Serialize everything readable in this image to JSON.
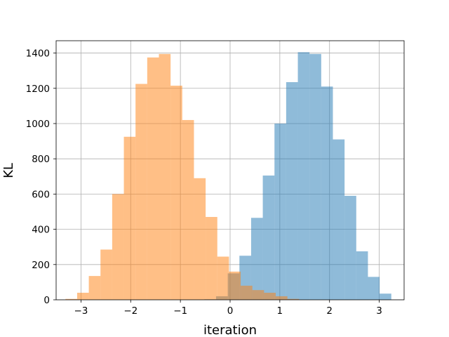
{
  "chart_data": {
    "type": "bar",
    "subtype": "overlapping-histogram",
    "title": "",
    "xlabel": "iteration",
    "ylabel": "KL",
    "xlim": [
      -3.5,
      3.5
    ],
    "ylim": [
      0,
      1470
    ],
    "xticks": [
      -3,
      -2,
      -1,
      0,
      1,
      2,
      3
    ],
    "yticks": [
      0,
      200,
      400,
      600,
      800,
      1000,
      1200,
      1400
    ],
    "grid": true,
    "legend": "none",
    "series": [
      {
        "color": "#1f77b4",
        "alpha": 0.5,
        "bin_width": 0.235,
        "bin_centers": [
          -0.4,
          -0.165,
          0.07,
          0.305,
          0.54,
          0.775,
          1.01,
          1.245,
          1.48,
          1.715,
          1.95,
          2.185,
          2.42,
          2.655,
          2.89,
          3.125
        ],
        "values": [
          3,
          20,
          150,
          250,
          465,
          705,
          1000,
          1235,
          1405,
          1395,
          1210,
          910,
          590,
          275,
          130,
          35
        ]
      },
      {
        "color": "#ff7f0e",
        "alpha": 0.5,
        "bin_width": 0.235,
        "bin_centers": [
          -3.195,
          -2.96,
          -2.725,
          -2.49,
          -2.255,
          -2.02,
          -1.785,
          -1.55,
          -1.315,
          -1.08,
          -0.845,
          -0.61,
          -0.375,
          -0.14,
          0.095,
          0.33,
          0.565,
          0.8,
          1.035,
          1.27
        ],
        "values": [
          5,
          40,
          135,
          285,
          600,
          925,
          1225,
          1375,
          1395,
          1215,
          1020,
          690,
          470,
          245,
          160,
          80,
          55,
          40,
          20,
          5
        ]
      }
    ]
  }
}
